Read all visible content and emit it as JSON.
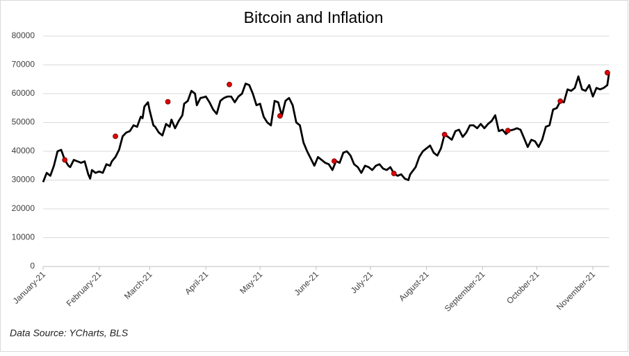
{
  "chart_data": {
    "type": "line",
    "title": "Bitcoin and Inflation",
    "source": "Data Source: YCharts, BLS",
    "ylim": [
      0,
      80000
    ],
    "yticks": [
      0,
      10000,
      20000,
      30000,
      40000,
      50000,
      60000,
      70000,
      80000
    ],
    "grid": true,
    "xlim": [
      0,
      313
    ],
    "xticks": [
      {
        "value": 0,
        "label": "January-21"
      },
      {
        "value": 31,
        "label": "February-21"
      },
      {
        "value": 59,
        "label": "March-21"
      },
      {
        "value": 90,
        "label": "April-21"
      },
      {
        "value": 120,
        "label": "May-21"
      },
      {
        "value": 151,
        "label": "June-21"
      },
      {
        "value": 181,
        "label": "July-21"
      },
      {
        "value": 212,
        "label": "August-21"
      },
      {
        "value": 243,
        "label": "September-21"
      },
      {
        "value": 273,
        "label": "October-21"
      },
      {
        "value": 304,
        "label": "November-21"
      }
    ],
    "series": [
      {
        "color": "#000000",
        "x": [
          0,
          2,
          4,
          6,
          8,
          10,
          12,
          14,
          15,
          17,
          19,
          21,
          23,
          25,
          26,
          27,
          29,
          31,
          33,
          35,
          37,
          38,
          40,
          42,
          44,
          46,
          48,
          50,
          52,
          54,
          55,
          56,
          58,
          59,
          61,
          62,
          64,
          66,
          68,
          70,
          71,
          73,
          75,
          77,
          78,
          80,
          82,
          84,
          85,
          87,
          89,
          90,
          92,
          94,
          96,
          98,
          100,
          102,
          104,
          106,
          108,
          110,
          112,
          114,
          116,
          118,
          120,
          122,
          124,
          126,
          128,
          130,
          132,
          134,
          136,
          138,
          140,
          142,
          144,
          146,
          148,
          150,
          152,
          154,
          156,
          158,
          160,
          162,
          164,
          166,
          168,
          170,
          172,
          174,
          176,
          178,
          180,
          182,
          184,
          186,
          188,
          190,
          192,
          194,
          196,
          198,
          200,
          202,
          203,
          206,
          208,
          210,
          212,
          214,
          216,
          218,
          220,
          222,
          224,
          226,
          228,
          230,
          232,
          234,
          236,
          238,
          240,
          242,
          244,
          246,
          248,
          250,
          252,
          254,
          256,
          258,
          260,
          262,
          264,
          266,
          268,
          270,
          272,
          274,
          276,
          278,
          280,
          282,
          284,
          286,
          288,
          290,
          292,
          294,
          296,
          298,
          300,
          302,
          304,
          306,
          308,
          310,
          312,
          313
        ],
        "values": [
          29300,
          32500,
          31500,
          35000,
          40000,
          40500,
          37000,
          35000,
          34500,
          37000,
          36500,
          36000,
          36500,
          32000,
          30500,
          33500,
          32500,
          33000,
          32500,
          35500,
          35000,
          36500,
          38000,
          40500,
          45200,
          46500,
          47000,
          49000,
          48500,
          52000,
          51500,
          55500,
          57000,
          54000,
          49000,
          48500,
          46500,
          45500,
          49500,
          48500,
          51000,
          48000,
          50500,
          52500,
          56500,
          57500,
          61000,
          60000,
          56000,
          58500,
          58800,
          59000,
          57000,
          54500,
          53000,
          57500,
          58500,
          59000,
          59000,
          57000,
          59000,
          60000,
          63500,
          63000,
          60000,
          56000,
          56500,
          52000,
          50000,
          49000,
          57500,
          57000,
          52300,
          57500,
          58500,
          56000,
          50000,
          49000,
          43000,
          40000,
          37500,
          35000,
          38000,
          37000,
          36000,
          35500,
          33500,
          36600,
          36000,
          39500,
          40000,
          38500,
          35500,
          34500,
          32500,
          35000,
          34500,
          33500,
          35000,
          35500,
          34000,
          33500,
          34500,
          32300,
          31500,
          32000,
          30500,
          30000,
          32000,
          34500,
          38000,
          40000,
          41000,
          42000,
          39500,
          38500,
          41000,
          45800,
          45000,
          44000,
          47000,
          47500,
          45000,
          46500,
          49000,
          49000,
          48000,
          49500,
          48000,
          49500,
          50500,
          52500,
          47000,
          47500,
          46000,
          47200,
          47500,
          48000,
          47500,
          44500,
          41500,
          44000,
          43500,
          41500,
          44000,
          48500,
          49000,
          54500,
          55000,
          57400,
          57000,
          61500,
          61000,
          62000,
          66000,
          61500,
          61000,
          63000,
          59000,
          62000,
          61500,
          62000,
          63000,
          67300
        ]
      },
      {
        "color": "#e00000",
        "marker": "circle",
        "x": [
          12,
          40,
          69,
          103,
          131,
          161,
          194,
          222,
          257,
          286,
          312
        ],
        "values": [
          37000,
          45200,
          57200,
          63200,
          52300,
          36600,
          32300,
          45800,
          47200,
          57400,
          67300
        ]
      }
    ]
  }
}
